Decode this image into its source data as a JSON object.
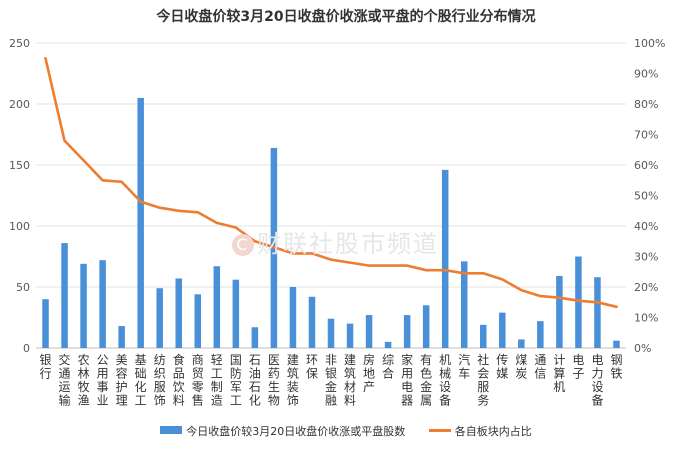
{
  "chart_data": {
    "type": "bar",
    "title": "今日收盘价较3月20日收盘价收涨或平盘的个股行业分布情况",
    "categories": [
      "银行",
      "交通运输",
      "农林牧渔",
      "公用事业",
      "美容护理",
      "基础化工",
      "纺织服饰",
      "食品饮料",
      "商贸零售",
      "轻工制造",
      "国防军工",
      "石油石化",
      "医药生物",
      "建筑装饰",
      "环保",
      "非银金融",
      "建筑材料",
      "房地产",
      "综合",
      "家用电器",
      "有色金属",
      "机械设备",
      "汽车",
      "社会服务",
      "传媒",
      "煤炭",
      "通信",
      "计算机",
      "电子",
      "电力设备",
      "钢铁"
    ],
    "series": [
      {
        "name": "今日收盘价较3月20日收盘价收涨或平盘股数",
        "type": "bar",
        "axis": "left",
        "color": "#4a90d9",
        "values": [
          40,
          86,
          69,
          72,
          18,
          205,
          49,
          57,
          44,
          67,
          56,
          17,
          164,
          50,
          42,
          24,
          20,
          27,
          5,
          27,
          35,
          146,
          71,
          19,
          29,
          7,
          22,
          59,
          75,
          58,
          6
        ]
      },
      {
        "name": "各自板块内占比",
        "type": "line",
        "axis": "right",
        "color": "#ed7d31",
        "values": [
          0.95,
          0.68,
          0.615,
          0.55,
          0.545,
          0.48,
          0.46,
          0.45,
          0.445,
          0.41,
          0.395,
          0.35,
          0.33,
          0.31,
          0.31,
          0.29,
          0.28,
          0.27,
          0.27,
          0.27,
          0.255,
          0.255,
          0.245,
          0.245,
          0.225,
          0.19,
          0.17,
          0.165,
          0.155,
          0.15,
          0.135
        ]
      }
    ],
    "y_left": {
      "min": 0,
      "max": 250,
      "ticks": [
        0,
        50,
        100,
        150,
        200,
        250
      ]
    },
    "y_right": {
      "min": 0,
      "max": 1,
      "ticks": [
        "0%",
        "10%",
        "20%",
        "30%",
        "40%",
        "50%",
        "60%",
        "70%",
        "80%",
        "90%",
        "100%"
      ]
    },
    "grid": true,
    "legend_position": "bottom"
  },
  "watermark": {
    "logo": "C",
    "text": "财联社股市频道"
  }
}
